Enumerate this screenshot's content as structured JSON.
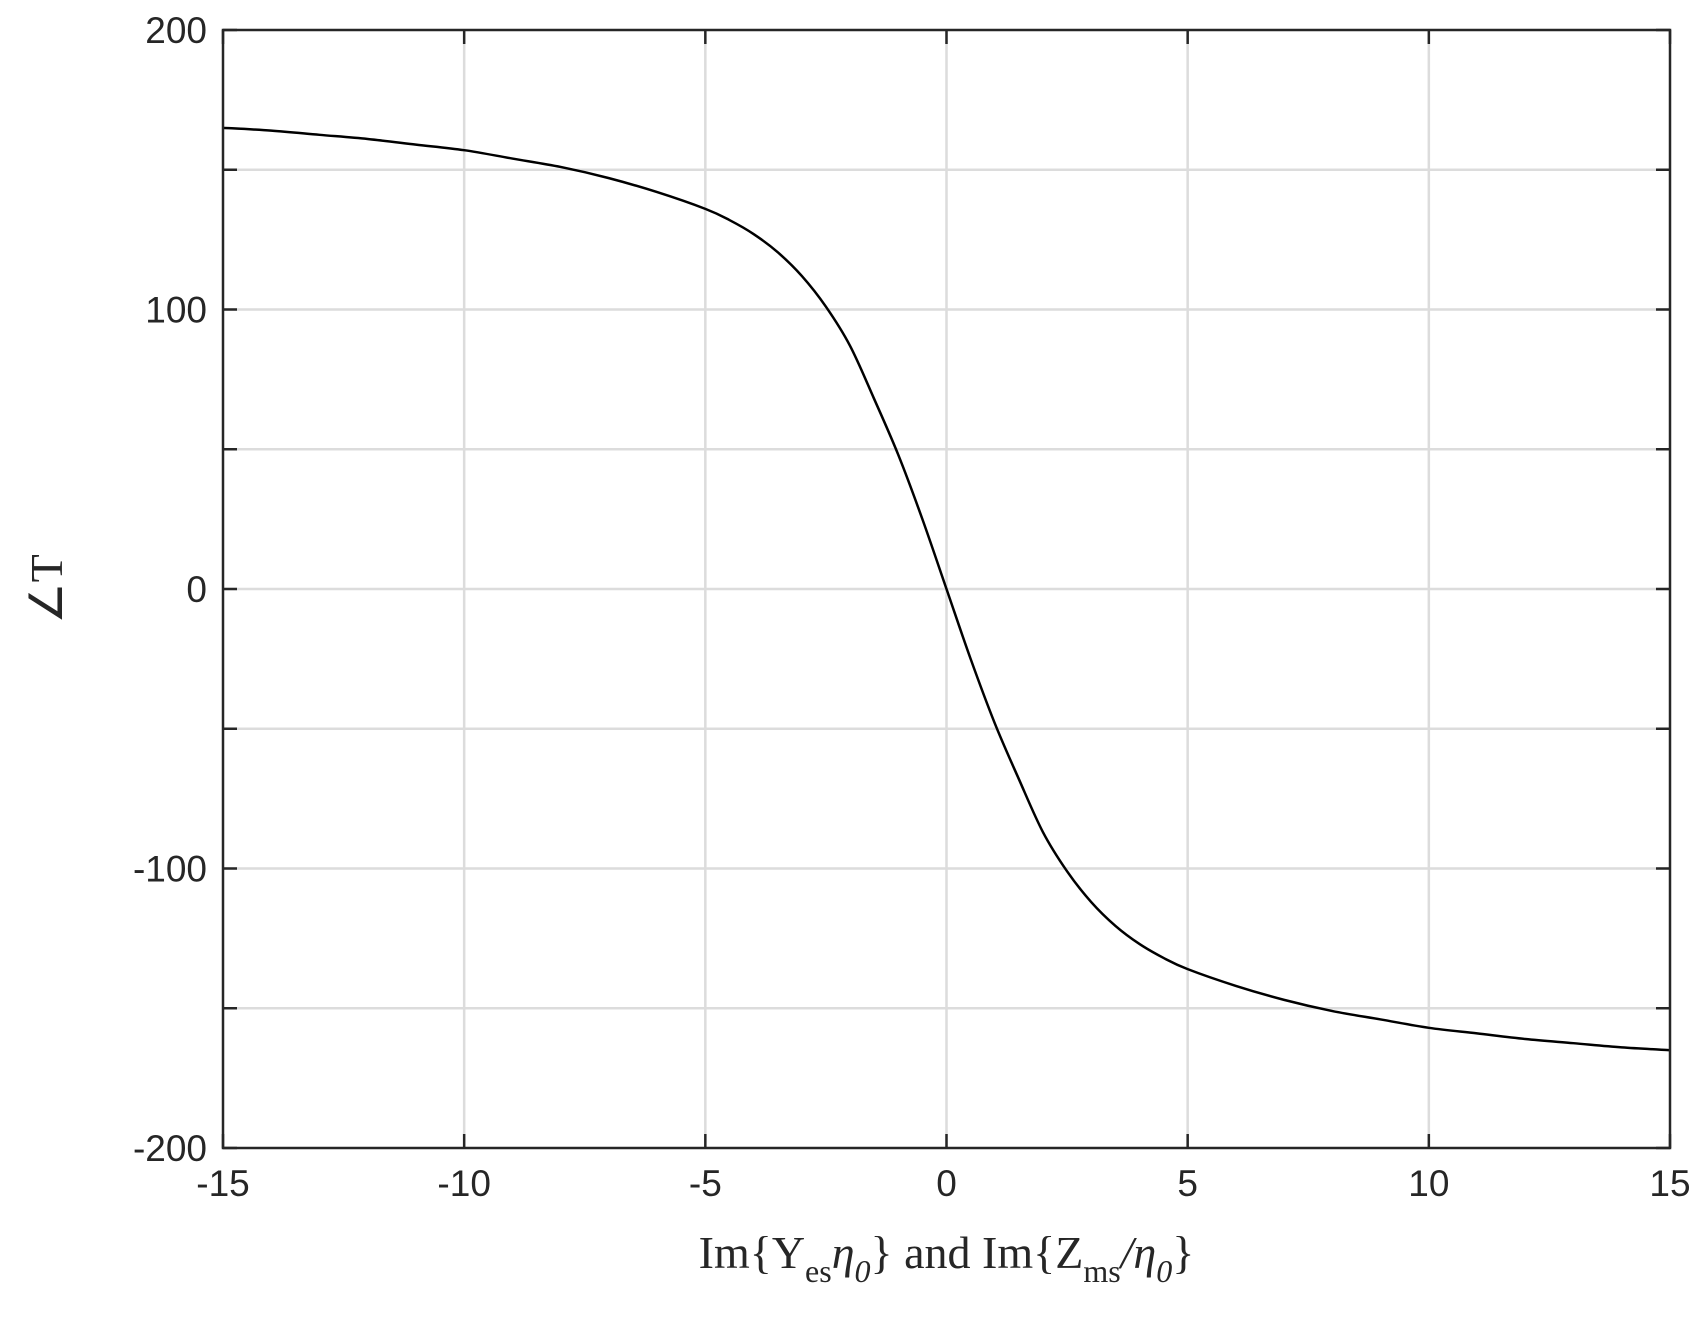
{
  "chart_data": {
    "type": "line",
    "title": "",
    "xlabel": {
      "text": "Im{Yesη0} and Im{Zms/η0}",
      "parts": [
        "Im{Y",
        "es",
        "η",
        "0",
        "} and Im{Z",
        "ms",
        "/η",
        "0",
        "}"
      ]
    },
    "ylabel": "∠T",
    "xlim": [
      -15,
      15
    ],
    "ylim": [
      -200,
      200
    ],
    "xticks": [
      -15,
      -10,
      -5,
      0,
      5,
      10,
      15
    ],
    "xtick_labels": [
      "-15",
      "-10",
      "-5",
      "0",
      "5",
      "10",
      "15"
    ],
    "yticks": [
      -200,
      -150,
      -100,
      -50,
      0,
      50,
      100,
      150,
      200
    ],
    "ytick_labels": [
      "-200",
      "",
      "-100",
      "",
      "0",
      "",
      "100",
      "",
      "200"
    ],
    "grid": true,
    "line_color": "#000000",
    "series": [
      {
        "x": [
          -15,
          -14,
          -13,
          -12,
          -11,
          -10,
          -9,
          -8,
          -7,
          -6,
          -5,
          -4.5,
          -4,
          -3.5,
          -3,
          -2.5,
          -2,
          -1.5,
          -1,
          -0.5,
          0,
          0.5,
          1,
          1.5,
          2,
          2.5,
          3,
          3.5,
          4,
          4.5,
          5,
          6,
          7,
          8,
          9,
          10,
          11,
          12,
          13,
          14,
          15
        ],
        "y": [
          165,
          164,
          162.5,
          161,
          159,
          157,
          154,
          151,
          147,
          142,
          136,
          132,
          127,
          120.5,
          112,
          101,
          87,
          68,
          48,
          25,
          0,
          -25,
          -48,
          -68,
          -87,
          -101,
          -112,
          -120.5,
          -127,
          -132,
          -136,
          -142,
          -147,
          -151,
          -154,
          -157,
          -159,
          -161,
          -162.5,
          -164,
          -165
        ]
      }
    ]
  }
}
